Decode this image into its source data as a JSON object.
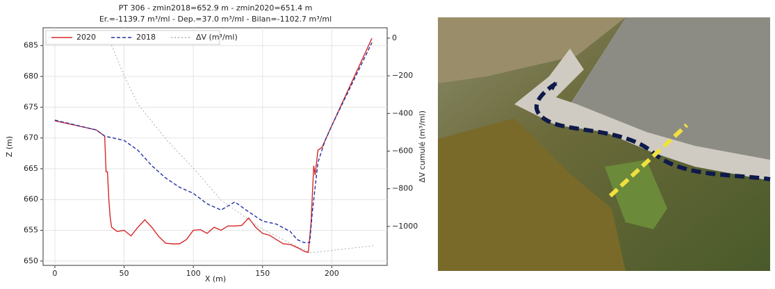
{
  "chart_data": {
    "type": "line",
    "title": "PT 306 - zmin2018=652.9 m - zmin2020=651.4 m",
    "subtitle": "Er.=-1139.7 m³/ml - Dep.=37.0 m³/ml - Bilan=-1102.7 m³/ml",
    "x_label": "X (m)",
    "y_label": "Z (m)",
    "y2_label": "ΔV cumulé (m³/ml)",
    "xlim": [
      -8.5,
      240
    ],
    "xticks": [
      0,
      50,
      100,
      150,
      200
    ],
    "ylim": [
      649.3,
      687.9
    ],
    "yticks": [
      650,
      655,
      660,
      665,
      670,
      675,
      680,
      685
    ],
    "y2lim": [
      -1207,
      55
    ],
    "y2ticks": [
      0,
      {
        "value": -200,
        "label": "−200"
      },
      {
        "value": -400,
        "label": "−400"
      },
      {
        "value": -600,
        "label": "−600"
      },
      {
        "value": -800,
        "label": "−800"
      },
      {
        "value": -1000,
        "label": "−1000"
      }
    ],
    "grid": true,
    "legend": "upper left",
    "series": [
      {
        "name": "2020",
        "color": "#d62728",
        "style": "solid",
        "x": [
          0,
          30,
          36,
          37,
          38,
          39,
          40,
          41,
          45,
          50,
          55,
          60,
          65,
          70,
          75,
          80,
          85,
          90,
          95,
          100,
          105,
          110,
          115,
          120,
          125,
          130,
          135,
          140,
          145,
          150,
          155,
          160,
          165,
          170,
          175,
          180,
          183,
          185,
          187,
          188,
          190,
          193,
          196,
          200,
          229
        ],
        "values": [
          672.8,
          671.3,
          670.3,
          664.5,
          664.5,
          660,
          657,
          655.5,
          654.8,
          655,
          654.1,
          655.5,
          656.7,
          655.5,
          654,
          652.9,
          652.8,
          652.8,
          653.5,
          655,
          655.1,
          654.5,
          655.5,
          655,
          655.7,
          655.7,
          655.8,
          657,
          655.5,
          654.5,
          654.2,
          653.5,
          652.8,
          652.7,
          652.2,
          651.6,
          651.4,
          656,
          665.5,
          664,
          668,
          668.5,
          670,
          672,
          686.2
        ]
      },
      {
        "name": "2018",
        "color": "#2030a0",
        "style": "dashed",
        "x": [
          0,
          30,
          36,
          40,
          50,
          60,
          70,
          80,
          90,
          100,
          110,
          120,
          130,
          140,
          150,
          160,
          170,
          175,
          180,
          184,
          186,
          190,
          195,
          200,
          229
        ],
        "values": [
          672.9,
          671.3,
          670.3,
          670.1,
          669.6,
          668,
          665.5,
          663.5,
          662,
          661,
          659.3,
          658.3,
          659.6,
          658,
          656.5,
          656,
          654.8,
          653.5,
          653,
          653,
          658,
          666,
          669.5,
          672,
          685.5
        ]
      },
      {
        "name": "ΔV (m³/ml)",
        "color": "#aaaaaa",
        "style": "dotted",
        "axis": "y2",
        "x": [
          40,
          50,
          60,
          80,
          100,
          120,
          150,
          175,
          185,
          230
        ],
        "values": [
          -20,
          -200,
          -350,
          -535,
          -690,
          -860,
          -1015,
          -1107,
          -1139.7,
          -1102.7
        ]
      }
    ]
  }
}
